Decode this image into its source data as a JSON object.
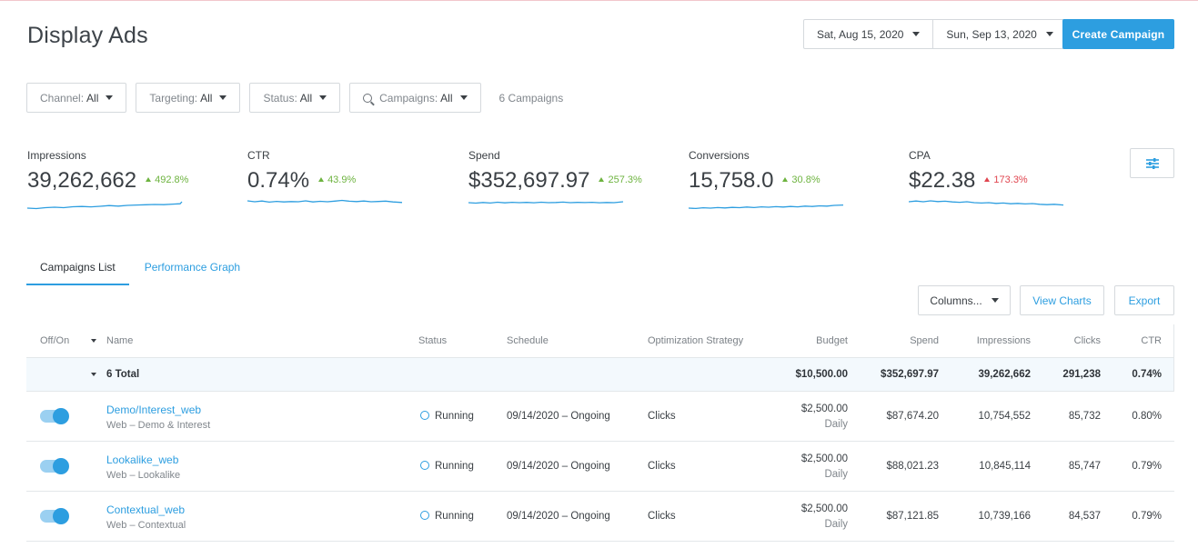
{
  "header": {
    "title": "Display Ads",
    "start_date": "Sat, Aug 15, 2020",
    "end_date": "Sun, Sep 13, 2020",
    "create_label": "Create Campaign"
  },
  "filters": {
    "channel": {
      "label": "Channel:",
      "value": "All"
    },
    "targeting": {
      "label": "Targeting:",
      "value": "All"
    },
    "status": {
      "label": "Status:",
      "value": "All"
    },
    "campaigns": {
      "label": "Campaigns:",
      "value": "All"
    },
    "count_text": "6 Campaigns"
  },
  "metrics": [
    {
      "label": "Impressions",
      "value": "39,262,662",
      "delta": "492.8%",
      "trend": "up"
    },
    {
      "label": "CTR",
      "value": "0.74%",
      "delta": "43.9%",
      "trend": "up"
    },
    {
      "label": "Spend",
      "value": "$352,697.97",
      "delta": "257.3%",
      "trend": "up"
    },
    {
      "label": "Conversions",
      "value": "15,758.0",
      "delta": "30.8%",
      "trend": "up"
    },
    {
      "label": "CPA",
      "value": "$22.38",
      "delta": "173.3%",
      "trend": "down"
    }
  ],
  "colors": {
    "accent": "#2d9ee0",
    "positive": "#6db33f",
    "negative": "#e0454f"
  },
  "tabs": [
    {
      "label": "Campaigns List",
      "active": true
    },
    {
      "label": "Performance Graph",
      "active": false
    }
  ],
  "toolbar": {
    "columns_label": "Columns...",
    "view_charts_label": "View Charts",
    "export_label": "Export"
  },
  "table": {
    "headers": {
      "offon": "Off/On",
      "name": "Name",
      "status": "Status",
      "schedule": "Schedule",
      "strategy": "Optimization Strategy",
      "budget": "Budget",
      "spend": "Spend",
      "impressions": "Impressions",
      "clicks": "Clicks",
      "ctr": "CTR"
    },
    "total": {
      "label": "6 Total",
      "budget": "$10,500.00",
      "spend": "$352,697.97",
      "impressions": "39,262,662",
      "clicks": "291,238",
      "ctr": "0.74%"
    },
    "rows": [
      {
        "name": "Demo/Interest_web",
        "sub": "Web – Demo & Interest",
        "status": "Running",
        "schedule": "09/14/2020 – Ongoing",
        "strategy": "Clicks",
        "budget": "$2,500.00",
        "budget_period": "Daily",
        "spend": "$87,674.20",
        "impressions": "10,754,552",
        "clicks": "85,732",
        "ctr": "0.80%"
      },
      {
        "name": "Lookalike_web",
        "sub": "Web – Lookalike",
        "status": "Running",
        "schedule": "09/14/2020 – Ongoing",
        "strategy": "Clicks",
        "budget": "$2,500.00",
        "budget_period": "Daily",
        "spend": "$88,021.23",
        "impressions": "10,845,114",
        "clicks": "85,747",
        "ctr": "0.79%"
      },
      {
        "name": "Contextual_web",
        "sub": "Web – Contextual",
        "status": "Running",
        "schedule": "09/14/2020 – Ongoing",
        "strategy": "Clicks",
        "budget": "$2,500.00",
        "budget_period": "Daily",
        "spend": "$87,121.85",
        "impressions": "10,739,166",
        "clicks": "84,537",
        "ctr": "0.79%"
      }
    ]
  }
}
